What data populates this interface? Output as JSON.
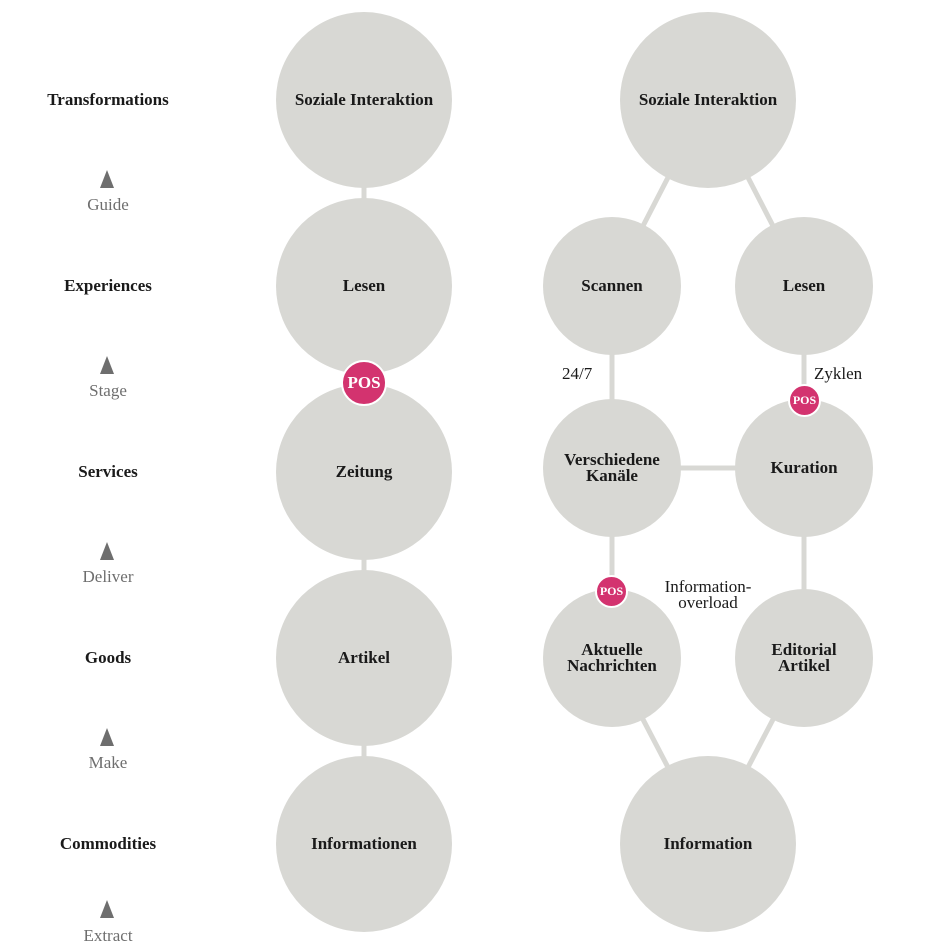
{
  "levels": [
    {
      "label": "Transformations"
    },
    {
      "label": "Experiences"
    },
    {
      "label": "Services"
    },
    {
      "label": "Goods"
    },
    {
      "label": "Commodities"
    }
  ],
  "verbs": [
    "Guide",
    "Stage",
    "Deliver",
    "Make",
    "Extract"
  ],
  "left_chain": {
    "nodes": [
      "Soziale Interaktion",
      "Lesen",
      "Zeitung",
      "Artikel",
      "Informationen"
    ],
    "pos_badge": "POS"
  },
  "right_graph": {
    "top": "Soziale Interaktion",
    "scannen": "Scannen",
    "lesen": "Lesen",
    "kanaele": [
      "Verschiedene",
      "Kanäle"
    ],
    "kuration": "Kuration",
    "nachrichten": [
      "Aktuelle",
      "Nachrichten"
    ],
    "editorial": [
      "Editorial",
      "Artikel"
    ],
    "bottom": "Information",
    "note_24_7": "24/7",
    "note_zyklen": "Zyklen",
    "note_overload": [
      "Information-",
      "overload"
    ],
    "pos_badge_1": "POS",
    "pos_badge_2": "POS"
  },
  "colors": {
    "node_fill": "#d8d8d4",
    "connector": "#d8d8d4",
    "pos_badge": "#d3336f",
    "verb_text": "#6e6e6e"
  }
}
